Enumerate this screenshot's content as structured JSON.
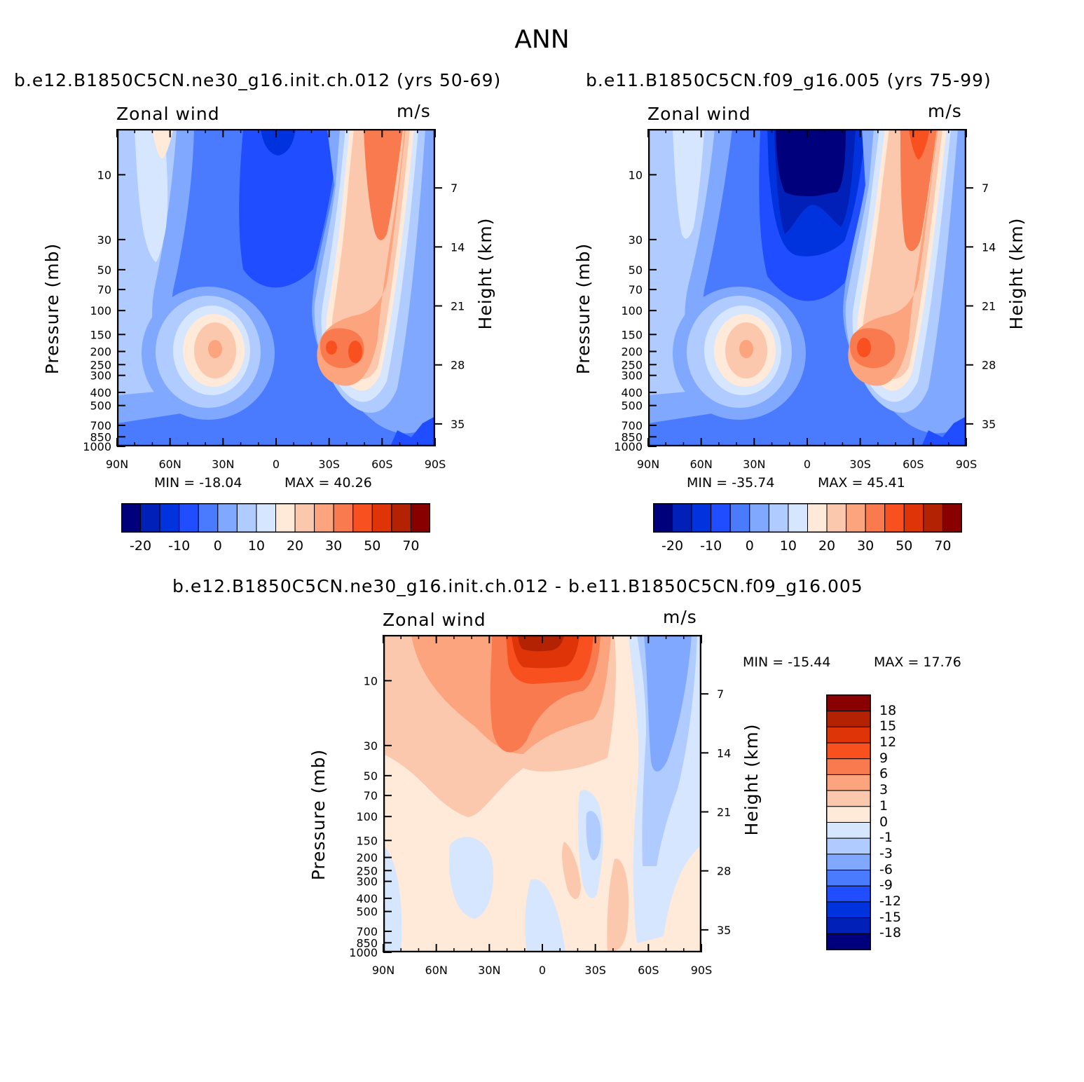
{
  "figure_title": "ANN",
  "chart_data": [
    {
      "type": "heatmap",
      "panel_title": "b.e12.B1850C5CN.ne30_g16.init.ch.012 (yrs 50-69)",
      "variable": "Zonal wind",
      "units": "m/s",
      "ylabel": "Pressure (mb)",
      "ylabel_right": "Height (km)",
      "x_ticks": [
        "90N",
        "60N",
        "30N",
        "0",
        "30S",
        "60S",
        "90S"
      ],
      "y_ticks": [
        "10",
        "30",
        "50",
        "70",
        "100",
        "150",
        "200",
        "250",
        "300",
        "400",
        "500",
        "700",
        "850",
        "1000"
      ],
      "y_right_ticks": [
        "35",
        "28",
        "21",
        "14",
        "7"
      ],
      "min_label": "MIN = -18.04",
      "max_label": "MAX = 40.26",
      "min": -18.04,
      "max": 40.26,
      "colorbar_labels": [
        "-20",
        "-10",
        "0",
        "10",
        "20",
        "30",
        "50",
        "70"
      ]
    },
    {
      "type": "heatmap",
      "panel_title": "b.e11.B1850C5CN.f09_g16.005 (yrs 75-99)",
      "variable": "Zonal wind",
      "units": "m/s",
      "ylabel": "Pressure (mb)",
      "ylabel_right": "Height (km)",
      "x_ticks": [
        "90N",
        "60N",
        "30N",
        "0",
        "30S",
        "60S",
        "90S"
      ],
      "y_ticks": [
        "10",
        "30",
        "50",
        "70",
        "100",
        "150",
        "200",
        "250",
        "300",
        "400",
        "500",
        "700",
        "850",
        "1000"
      ],
      "y_right_ticks": [
        "35",
        "28",
        "21",
        "14",
        "7"
      ],
      "min_label": "MIN = -35.74",
      "max_label": "MAX = 45.41",
      "min": -35.74,
      "max": 45.41,
      "colorbar_labels": [
        "-20",
        "-10",
        "0",
        "10",
        "20",
        "30",
        "50",
        "70"
      ]
    },
    {
      "type": "heatmap",
      "panel_title": "b.e12.B1850C5CN.ne30_g16.init.ch.012 - b.e11.B1850C5CN.f09_g16.005",
      "variable": "Zonal wind",
      "units": "m/s",
      "ylabel": "Pressure (mb)",
      "ylabel_right": "Height (km)",
      "x_ticks": [
        "90N",
        "60N",
        "30N",
        "0",
        "30S",
        "60S",
        "90S"
      ],
      "y_ticks": [
        "10",
        "30",
        "50",
        "70",
        "100",
        "150",
        "200",
        "250",
        "300",
        "400",
        "500",
        "700",
        "850",
        "1000"
      ],
      "y_right_ticks": [
        "35",
        "28",
        "21",
        "14",
        "7"
      ],
      "min_label": "MIN = -15.44",
      "max_label": "MAX = 17.76",
      "min": -15.44,
      "max": 17.76,
      "colorbar_labels": [
        "18",
        "15",
        "12",
        "9",
        "6",
        "3",
        "1",
        "0",
        "-1",
        "-3",
        "-6",
        "-9",
        "-12",
        "-15",
        "-18"
      ]
    }
  ],
  "palette": [
    "#00007d",
    "#0020b8",
    "#0033dd",
    "#1f4dff",
    "#4a7bff",
    "#80a8ff",
    "#b0cbff",
    "#d7e6ff",
    "#ffe9d8",
    "#fcc8ad",
    "#fba47e",
    "#fa7a4f",
    "#f9501f",
    "#df3408",
    "#b32202",
    "#880000"
  ]
}
